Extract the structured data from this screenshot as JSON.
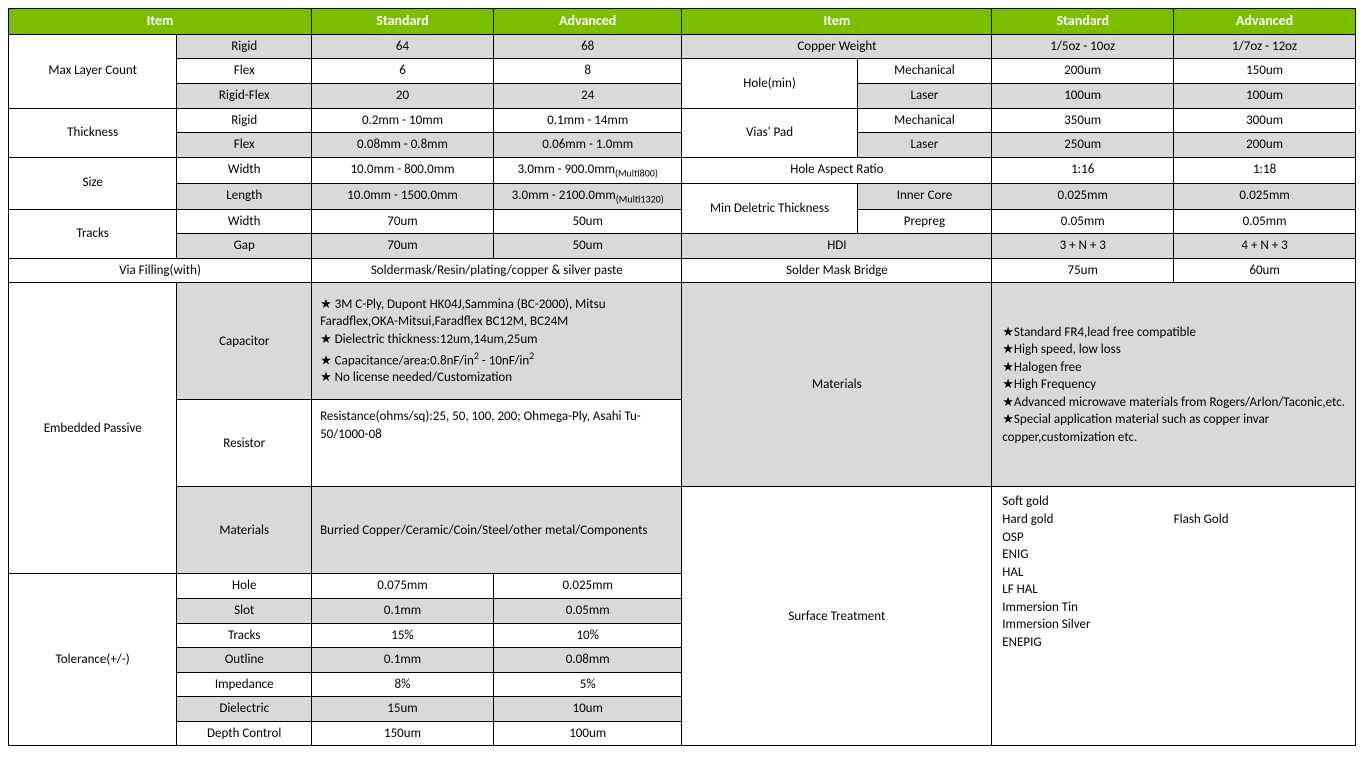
{
  "headers": {
    "item": "Item",
    "standard": "Standard",
    "advanced": "Advanced"
  },
  "left": {
    "maxLayerCount": {
      "label": "Max Layer Count",
      "rows": [
        {
          "sub": "Rigid",
          "std": "64",
          "adv": "68"
        },
        {
          "sub": "Flex",
          "std": "6",
          "adv": "8"
        },
        {
          "sub": "Rigid-Flex",
          "std": "20",
          "adv": "24"
        }
      ]
    },
    "thickness": {
      "label": "Thickness",
      "rows": [
        {
          "sub": "Rigid",
          "std": "0.2mm - 10mm",
          "adv": "0.1mm - 14mm"
        },
        {
          "sub": "Flex",
          "std": "0.08mm - 0.8mm",
          "adv": "0.06mm - 1.0mm"
        }
      ]
    },
    "size": {
      "label": "Size",
      "rows": [
        {
          "sub": "Width",
          "std": "10.0mm - 800.0mm",
          "adv": "3.0mm - 900.0mm",
          "advSub": "(Multi800)"
        },
        {
          "sub": "Length",
          "std": "10.0mm - 1500.0mm",
          "adv": "3.0mm - 2100.0mm",
          "advSub": "(Multi1320)"
        }
      ]
    },
    "tracks": {
      "label": "Tracks",
      "rows": [
        {
          "sub": "Width",
          "std": "70um",
          "adv": "50um"
        },
        {
          "sub": "Gap",
          "std": "70um",
          "adv": "50um"
        }
      ]
    },
    "viaFilling": {
      "label": "Via Filling(with)",
      "value": "Soldermask/Resin/plating/copper & silver paste"
    },
    "embeddedPassive": {
      "label": "Embedded Passive",
      "capacitor": {
        "label": "Capacitor",
        "lines": [
          "★ 3M C-Ply, Dupont HK04J,Sammina (BC-2000), Mitsu Faradflex,OKA-Mitsui,Faradflex BC12M, BC24M",
          "★ Dielectric thickness:12um,14um,25um",
          "★ Capacitance/area:0.8nF/in² - 10nF/in²",
          "★ No license needed/Customization"
        ]
      },
      "resistor": {
        "label": "Resistor",
        "text": "Resistance(ohms/sq):25, 50, 100, 200; Ohmega-Ply, Asahi Tu-50/1000-08"
      },
      "materials": {
        "label": "Materials",
        "text": "Burried Copper/Ceramic/Coin/Steel/other metal/Components"
      }
    },
    "tolerance": {
      "label": "Tolerance(+/-)",
      "rows": [
        {
          "sub": "Hole",
          "std": "0.075mm",
          "adv": "0.025mm"
        },
        {
          "sub": "Slot",
          "std": "0.1mm",
          "adv": "0.05mm"
        },
        {
          "sub": "Tracks",
          "std": "15%",
          "adv": "10%"
        },
        {
          "sub": "Outline",
          "std": "0.1mm",
          "adv": "0.08mm"
        },
        {
          "sub": "Impedance",
          "std": "8%",
          "adv": "5%"
        },
        {
          "sub": "Dielectric",
          "std": "15um",
          "adv": "10um"
        },
        {
          "sub": "Depth Control",
          "std": "150um",
          "adv": "100um"
        }
      ]
    }
  },
  "right": {
    "copperWeight": {
      "label": "Copper Weight",
      "std": "1/5oz - 10oz",
      "adv": "1/7oz - 12oz"
    },
    "holeMin": {
      "label": "Hole(min)",
      "rows": [
        {
          "sub": "Mechanical",
          "std": "200um",
          "adv": "150um"
        },
        {
          "sub": "Laser",
          "std": "100um",
          "adv": "100um"
        }
      ]
    },
    "viasPad": {
      "label": "Vias' Pad",
      "rows": [
        {
          "sub": "Mechanical",
          "std": "350um",
          "adv": "300um"
        },
        {
          "sub": "Laser",
          "std": "250um",
          "adv": "200um"
        }
      ]
    },
    "holeAspect": {
      "label": "Hole Aspect Ratio",
      "std": "1:16",
      "adv": "1:18"
    },
    "minDielectric": {
      "label": "Min Deletric Thickness",
      "rows": [
        {
          "sub": "Inner Core",
          "std": "0.025mm",
          "adv": "0.025mm"
        },
        {
          "sub": "Prepreg",
          "std": "0.05mm",
          "adv": "0.05mm"
        }
      ]
    },
    "hdi": {
      "label": "HDI",
      "std": "3 + N + 3",
      "adv": "4 + N + 3"
    },
    "solderMask": {
      "label": "Solder Mask Bridge",
      "std": "75um",
      "adv": "60um"
    },
    "materials": {
      "label": "Materials",
      "lines": [
        "★Standard FR4,lead free compatible",
        "★High speed, low loss",
        "★Halogen free",
        "★High Frequency",
        "★Advanced microwave materials from Rogers/Arlon/Taconic,etc.",
        "★Special application material such as copper invar copper,customization etc."
      ]
    },
    "surfaceTreatment": {
      "label": "Surface Treatment",
      "col1": [
        "Soft gold",
        "Hard gold",
        "OSP",
        "ENIG",
        "HAL",
        "LF HAL",
        "Immersion Tin",
        "Immersion Silver",
        "ENEPIG"
      ],
      "col2": [
        "Flash Gold"
      ]
    }
  },
  "style": {
    "header_bg": "#7cbf00",
    "header_fg": "#ffffff",
    "gray_bg": "#d9d9d9",
    "border": "#000000",
    "font": "Calibri"
  }
}
